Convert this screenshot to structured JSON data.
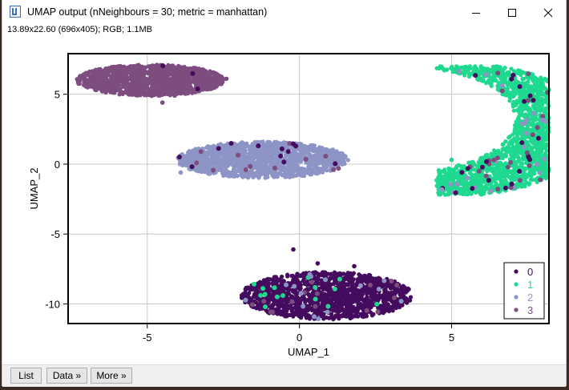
{
  "window": {
    "title": "UMAP output (nNeighbours = 30; metric = manhattan)",
    "subtitle": "13.89x22.60  (696x405); RGB; 1.1MB",
    "controls": [
      "minimize",
      "maximize",
      "close"
    ]
  },
  "buttons": {
    "list": "List",
    "data": "Data »",
    "more": "More »"
  },
  "colors": {
    "class_0": "#440b5e",
    "class_1": "#1ed98f",
    "class_2": "#8c95c6",
    "class_3": "#7e4d7f",
    "background_strip": "#3a2a22"
  },
  "chart_data": {
    "type": "scatter",
    "xlabel": "UMAP_1",
    "ylabel": "UMAP_2",
    "xlim": [
      -7.6,
      8.2
    ],
    "ylim": [
      -11.4,
      7.9
    ],
    "xticks": [
      -5,
      0,
      5
    ],
    "yticks": [
      5,
      0,
      -5,
      -10
    ],
    "grid": true,
    "legend": {
      "position": "bottom-right",
      "entries": [
        "0",
        "1",
        "2",
        "3"
      ]
    },
    "clusters": [
      {
        "class": "0",
        "color": "#440b5e",
        "shape": "blob",
        "center": [
          0.9,
          -9.4
        ],
        "rx": 2.9,
        "ry": 1.75,
        "outliers": [
          [
            -0.2,
            -6.1
          ],
          [
            0.6,
            -7.1
          ],
          [
            1.8,
            -7.3
          ],
          [
            2.3,
            -8.6
          ]
        ]
      },
      {
        "class": "1",
        "color": "#1ed98f",
        "shape": "crescent",
        "outer_center": [
          4.9,
          2.5
        ],
        "outer_r": 4.8,
        "inner_center": [
          3.3,
          3.2
        ],
        "inner_r": 3.8,
        "x_range": [
          4.5,
          8.2
        ],
        "y_range": [
          -2.2,
          7.0
        ],
        "outliers": [
          [
            4.9,
            -1.5
          ],
          [
            5.0,
            0.3
          ]
        ]
      },
      {
        "class": "2",
        "color": "#8c95c6",
        "shape": "blob",
        "center": [
          -1.2,
          0.3
        ],
        "rx": 2.9,
        "ry": 1.35,
        "outliers": [
          [
            -3.9,
            -0.6
          ],
          [
            -2.7,
            1.2
          ],
          [
            0.9,
            0.6
          ]
        ]
      },
      {
        "class": "3",
        "color": "#7e4d7f",
        "shape": "blob",
        "center": [
          -4.9,
          6.0
        ],
        "rx": 2.5,
        "ry": 1.15,
        "outliers": [
          [
            -2.4,
            6.1
          ],
          [
            -4.1,
            4.9
          ],
          [
            -4.5,
            4.4
          ],
          [
            -6.3,
            5.9
          ]
        ]
      }
    ],
    "mixing": [
      {
        "host_class": "0",
        "guest_classes": [
          "2",
          "3",
          "1"
        ],
        "count": 45
      },
      {
        "host_class": "1",
        "guest_classes": [
          "2",
          "3",
          "0"
        ],
        "count": 70
      },
      {
        "host_class": "2",
        "guest_classes": [
          "3",
          "0"
        ],
        "count": 25
      },
      {
        "host_class": "3",
        "guest_classes": [
          "0"
        ],
        "count": 3
      }
    ]
  }
}
